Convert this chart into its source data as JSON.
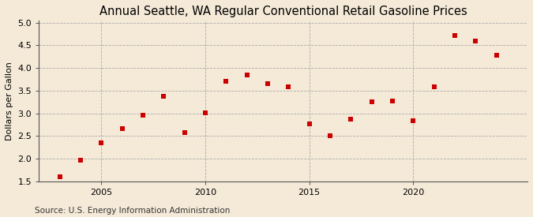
{
  "title": "Annual Seattle, WA Regular Conventional Retail Gasoline Prices",
  "ylabel": "Dollars per Gallon",
  "source": "Source: U.S. Energy Information Administration",
  "background_color": "#f5ead8",
  "plot_bg_color": "#f5ead8",
  "years": [
    2003,
    2004,
    2005,
    2006,
    2007,
    2008,
    2009,
    2010,
    2011,
    2012,
    2013,
    2014,
    2015,
    2016,
    2017,
    2018,
    2019,
    2020,
    2021,
    2022,
    2023,
    2024
  ],
  "values": [
    1.6,
    1.97,
    2.35,
    2.67,
    2.95,
    3.38,
    2.57,
    3.01,
    3.7,
    3.84,
    3.65,
    3.59,
    2.77,
    2.5,
    2.87,
    3.26,
    3.27,
    2.83,
    3.59,
    4.72,
    4.59,
    4.28
  ],
  "point_color": "#cc0000",
  "xlim": [
    2002.0,
    2025.5
  ],
  "ylim": [
    1.5,
    5.05
  ],
  "yticks": [
    1.5,
    2.0,
    2.5,
    3.0,
    3.5,
    4.0,
    4.5,
    5.0
  ],
  "xticks": [
    2005,
    2010,
    2015,
    2020
  ],
  "vline_years": [
    2005,
    2010,
    2015,
    2020
  ],
  "title_fontsize": 10.5,
  "ylabel_fontsize": 8,
  "tick_fontsize": 8,
  "source_fontsize": 7.5,
  "marker_size": 18
}
